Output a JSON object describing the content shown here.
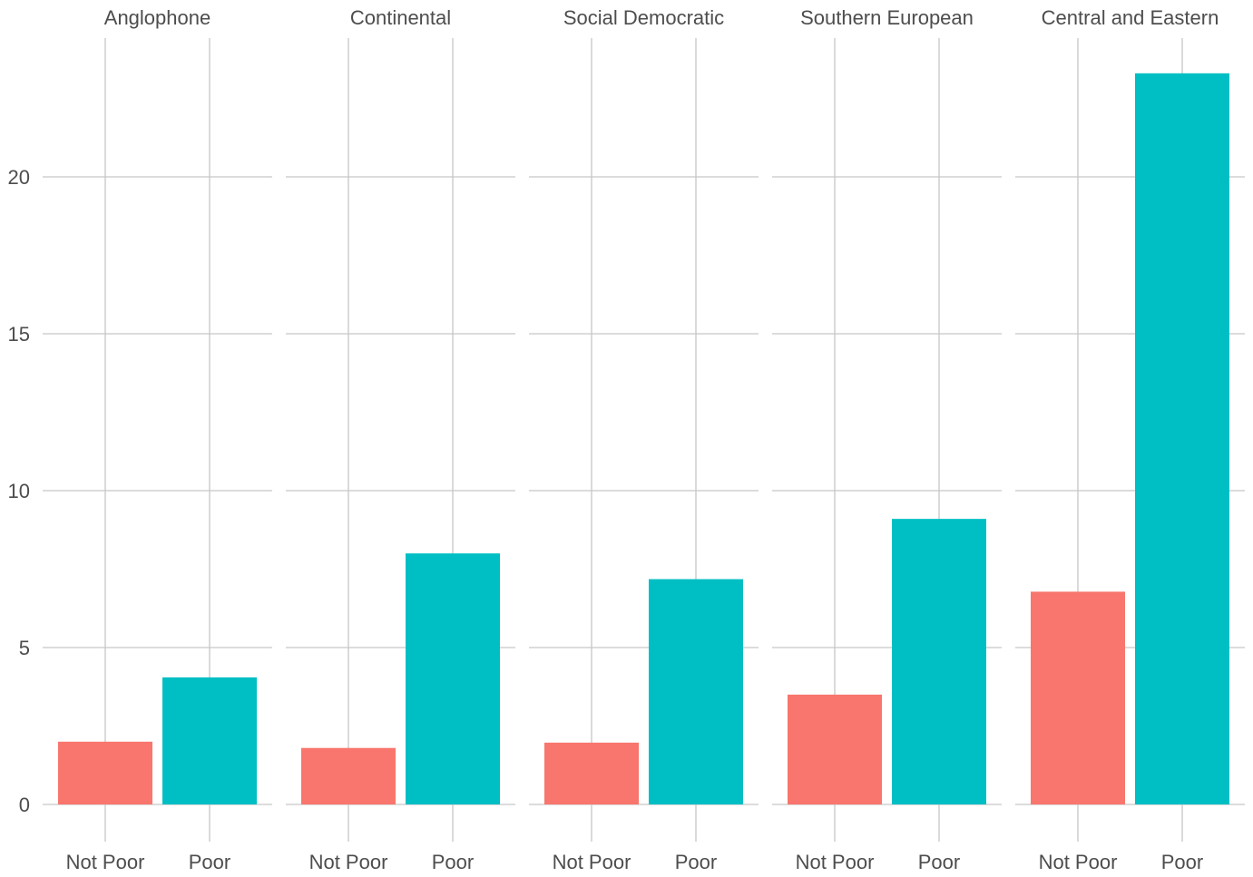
{
  "chart_data": {
    "type": "bar",
    "title": "",
    "xlabel": "",
    "ylabel": "",
    "ylim": [
      0,
      24.5
    ],
    "y_ticks": [
      0,
      5,
      10,
      15,
      20
    ],
    "y_tick_labels": [
      "0",
      "5",
      "10",
      "15",
      "20"
    ],
    "grid": true,
    "legend": "none",
    "categories": [
      "Not Poor",
      "Poor"
    ],
    "category_colors": {
      "Not Poor": "#f8766d",
      "Poor": "#00bfc4"
    },
    "panels": [
      {
        "name": "Anglophone",
        "values": [
          2.0,
          4.05
        ]
      },
      {
        "name": "Continental",
        "values": [
          1.8,
          8.0
        ]
      },
      {
        "name": "Social Democratic",
        "values": [
          1.97,
          7.18
        ]
      },
      {
        "name": "Southern European",
        "values": [
          3.5,
          9.1
        ]
      },
      {
        "name": "Central and Eastern",
        "values": [
          6.78,
          23.3
        ]
      }
    ]
  },
  "colors": {
    "grid": "#c7c7c7",
    "text": "#4d4d4d",
    "background": "#ffffff"
  }
}
